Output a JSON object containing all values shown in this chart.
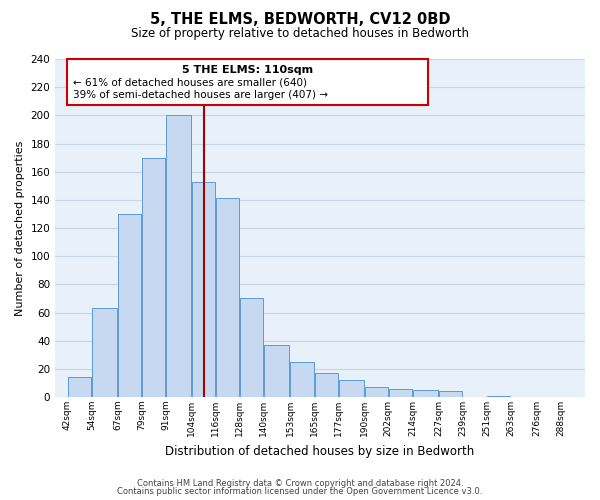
{
  "title": "5, THE ELMS, BEDWORTH, CV12 0BD",
  "subtitle": "Size of property relative to detached houses in Bedworth",
  "xlabel": "Distribution of detached houses by size in Bedworth",
  "ylabel": "Number of detached properties",
  "bar_left_edges": [
    42,
    54,
    67,
    79,
    91,
    104,
    116,
    128,
    140,
    153,
    165,
    177,
    190,
    202,
    214,
    227,
    239,
    251,
    263,
    276
  ],
  "bar_widths": [
    12,
    13,
    12,
    12,
    13,
    12,
    12,
    12,
    13,
    12,
    12,
    13,
    12,
    12,
    13,
    12,
    12,
    12,
    13,
    12
  ],
  "bar_heights": [
    14,
    63,
    130,
    170,
    200,
    153,
    141,
    70,
    37,
    25,
    17,
    12,
    7,
    6,
    5,
    4,
    0,
    1,
    0,
    0
  ],
  "bar_color": "#c7d9f0",
  "bar_edge_color": "#5b9bd5",
  "tick_labels": [
    "42sqm",
    "54sqm",
    "67sqm",
    "79sqm",
    "91sqm",
    "104sqm",
    "116sqm",
    "128sqm",
    "140sqm",
    "153sqm",
    "165sqm",
    "177sqm",
    "190sqm",
    "202sqm",
    "214sqm",
    "227sqm",
    "239sqm",
    "251sqm",
    "263sqm",
    "276sqm",
    "288sqm"
  ],
  "tick_positions": [
    42,
    54,
    67,
    79,
    91,
    104,
    116,
    128,
    140,
    153,
    165,
    177,
    190,
    202,
    214,
    227,
    239,
    251,
    263,
    276,
    288
  ],
  "ylim": [
    0,
    240
  ],
  "yticks": [
    0,
    20,
    40,
    60,
    80,
    100,
    120,
    140,
    160,
    180,
    200,
    220,
    240
  ],
  "grid_color": "#c8d4e8",
  "bg_color": "#e8f0fa",
  "vline_x": 110,
  "vline_color": "#aa0000",
  "annotation_title": "5 THE ELMS: 110sqm",
  "annotation_line1": "← 61% of detached houses are smaller (640)",
  "annotation_line2": "39% of semi-detached houses are larger (407) →",
  "annotation_box_color": "#cc0000",
  "footer_line1": "Contains HM Land Registry data © Crown copyright and database right 2024.",
  "footer_line2": "Contains public sector information licensed under the Open Government Licence v3.0."
}
